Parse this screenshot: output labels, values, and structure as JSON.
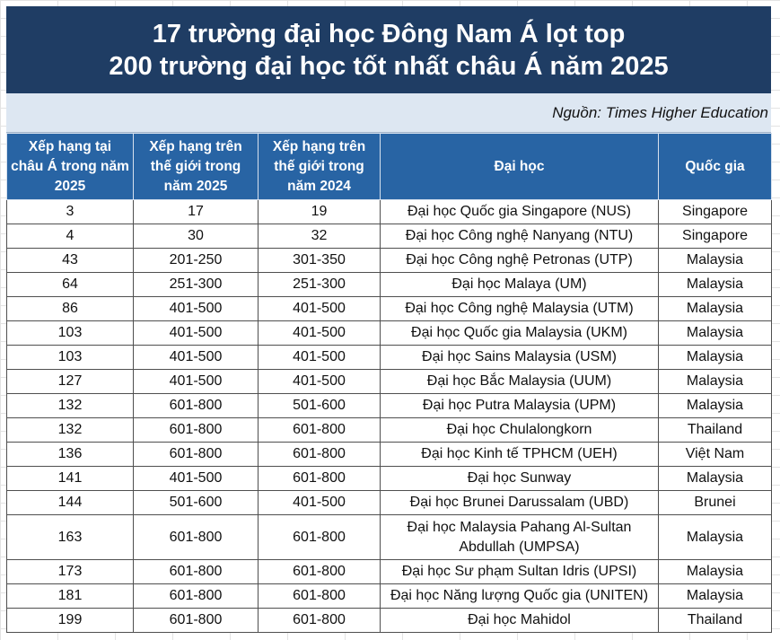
{
  "title": {
    "line1": "17 trường đại học Đông Nam Á lọt top",
    "line2": "200 trường đại học tốt nhất châu Á năm 2025"
  },
  "source": "Nguồn: Times Higher Education",
  "columns": [
    "Xếp hạng tại châu Á trong năm 2025",
    "Xếp hạng trên thế giới trong năm 2025",
    "Xếp hạng trên thế giới trong năm 2024",
    "Đại học",
    "Quốc gia"
  ],
  "rows": [
    [
      "3",
      "17",
      "19",
      "Đại học Quốc gia Singapore (NUS)",
      "Singapore"
    ],
    [
      "4",
      "30",
      "32",
      "Đại học Công nghệ Nanyang (NTU)",
      "Singapore"
    ],
    [
      "43",
      "201-250",
      "301-350",
      "Đại học Công nghệ Petronas (UTP)",
      "Malaysia"
    ],
    [
      "64",
      "251-300",
      "251-300",
      "Đại học Malaya (UM)",
      "Malaysia"
    ],
    [
      "86",
      "401-500",
      "401-500",
      "Đại học Công nghệ Malaysia (UTM)",
      "Malaysia"
    ],
    [
      "103",
      "401-500",
      "401-500",
      "Đại học Quốc gia Malaysia (UKM)",
      "Malaysia"
    ],
    [
      "103",
      "401-500",
      "401-500",
      "Đại học Sains Malaysia (USM)",
      "Malaysia"
    ],
    [
      "127",
      "401-500",
      "401-500",
      "Đại học Bắc Malaysia (UUM)",
      "Malaysia"
    ],
    [
      "132",
      "601-800",
      "501-600",
      "Đại học Putra Malaysia (UPM)",
      "Malaysia"
    ],
    [
      "132",
      "601-800",
      "601-800",
      "Đại học Chulalongkorn",
      "Thailand"
    ],
    [
      "136",
      "601-800",
      "601-800",
      "Đại học Kinh tế TPHCM (UEH)",
      "Việt Nam"
    ],
    [
      "141",
      "401-500",
      "601-800",
      "Đại học Sunway",
      "Malaysia"
    ],
    [
      "144",
      "501-600",
      "401-500",
      "Đại học Brunei Darussalam (UBD)",
      "Brunei"
    ],
    [
      "163",
      "601-800",
      "601-800",
      "Đại học Malaysia Pahang Al-Sultan Abdullah (UMPSA)",
      "Malaysia"
    ],
    [
      "173",
      "601-800",
      "601-800",
      "Đại học Sư phạm Sultan Idris (UPSI)",
      "Malaysia"
    ],
    [
      "181",
      "601-800",
      "601-800",
      "Đại học Năng lượng Quốc gia (UNITEN)",
      "Malaysia"
    ],
    [
      "199",
      "601-800",
      "601-800",
      "Đại học Mahidol",
      "Thailand"
    ]
  ]
}
